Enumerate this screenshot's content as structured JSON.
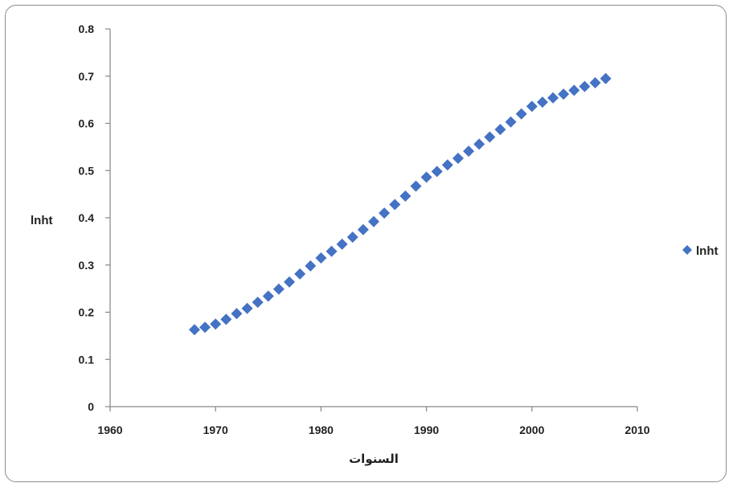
{
  "chart_data": {
    "type": "scatter",
    "xlabel": "السنوات",
    "ylabel": "lnht",
    "xlim": [
      1960,
      2010
    ],
    "ylim": [
      0,
      0.8
    ],
    "xticks": [
      "1960",
      "1970",
      "1980",
      "1990",
      "2000",
      "2010"
    ],
    "yticks": [
      "0",
      "0.1",
      "0.2",
      "0.3",
      "0.4",
      "0.5",
      "0.6",
      "0.7",
      "0.8"
    ],
    "grid": false,
    "legend_position": "right",
    "marker": "diamond",
    "series": [
      {
        "name": "lnht",
        "color": "#4472C4",
        "x": [
          1968,
          1969,
          1970,
          1971,
          1972,
          1973,
          1974,
          1975,
          1976,
          1977,
          1978,
          1979,
          1980,
          1981,
          1982,
          1983,
          1984,
          1985,
          1986,
          1987,
          1988,
          1989,
          1990,
          1991,
          1992,
          1993,
          1994,
          1995,
          1996,
          1997,
          1998,
          1999,
          2000,
          2001,
          2002,
          2003,
          2004,
          2005,
          2006,
          2007
        ],
        "y": [
          0.163,
          0.168,
          0.175,
          0.185,
          0.197,
          0.208,
          0.221,
          0.234,
          0.249,
          0.264,
          0.281,
          0.298,
          0.315,
          0.329,
          0.344,
          0.359,
          0.375,
          0.392,
          0.41,
          0.428,
          0.446,
          0.467,
          0.486,
          0.498,
          0.512,
          0.526,
          0.541,
          0.556,
          0.571,
          0.587,
          0.603,
          0.62,
          0.636,
          0.645,
          0.654,
          0.662,
          0.67,
          0.678,
          0.686,
          0.695
        ]
      }
    ]
  }
}
